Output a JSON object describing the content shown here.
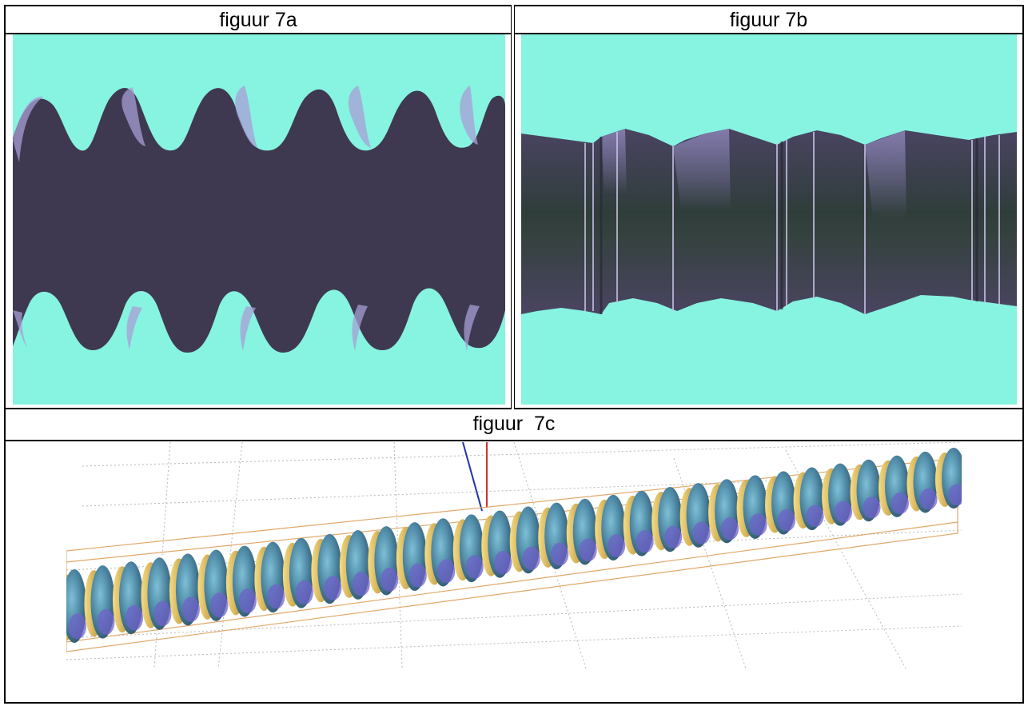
{
  "figures": {
    "fig_a": {
      "caption": "figuur 7a"
    },
    "fig_b": {
      "caption": "figuur 7b"
    },
    "fig_c": {
      "caption": "figuur  7c"
    }
  },
  "colors": {
    "background_cyan": "#87f3e1",
    "body_purple": "#3e3950",
    "highlight_lavender": "#a79fd4",
    "gold": "#d8b351",
    "steel_blue": "#4f8aa6",
    "violet": "#6f63c9",
    "grid_gray": "#b8b8b8",
    "box_orange": "#e0a86a"
  }
}
